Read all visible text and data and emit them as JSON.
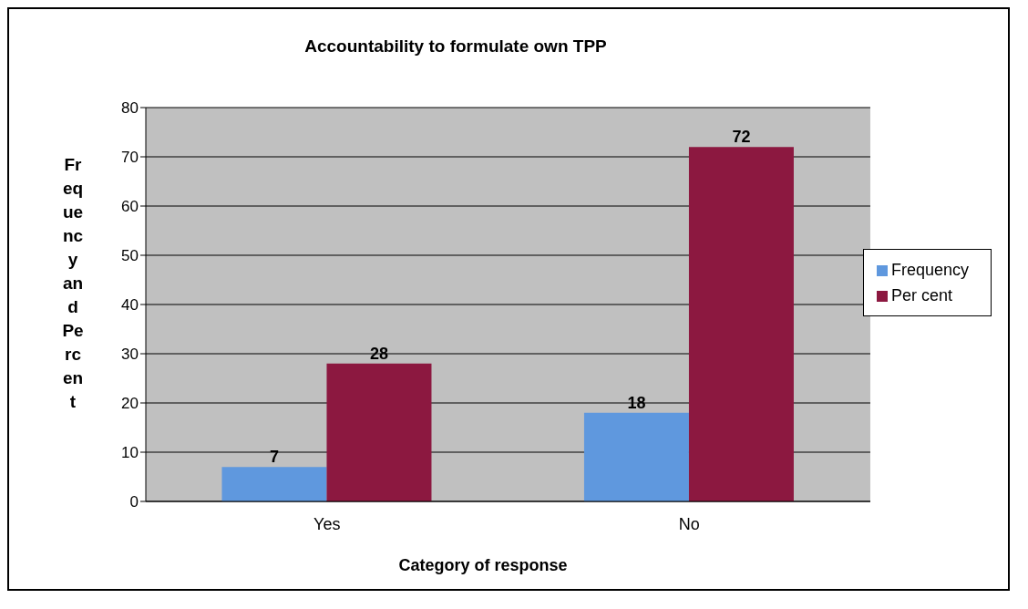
{
  "chart_data": {
    "type": "bar",
    "title": "Accountability to formulate own TPP",
    "xlabel": "Category of response",
    "ylabel": "Frequency and Percent",
    "categories": [
      "Yes",
      "No"
    ],
    "series": [
      {
        "name": "Frequency",
        "color": "#5f98de",
        "values": [
          7,
          18
        ]
      },
      {
        "name": "Per cent",
        "color": "#8c1840",
        "values": [
          28,
          72
        ]
      }
    ],
    "ylim": [
      0,
      80
    ],
    "yticks": [
      0,
      10,
      20,
      30,
      40,
      50,
      60,
      70,
      80
    ],
    "grid": "y",
    "legend": "right",
    "data_labels": true
  }
}
